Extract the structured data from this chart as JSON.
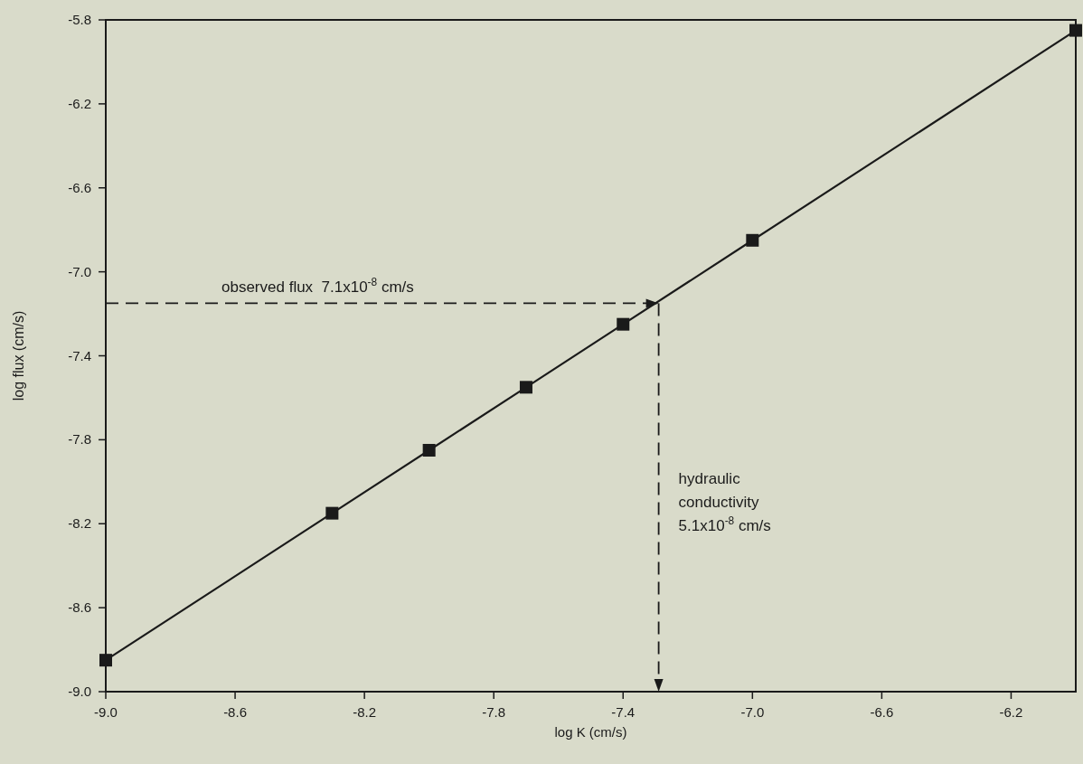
{
  "chart_data": {
    "type": "line",
    "xlabel": "log K (cm/s)",
    "ylabel": "log flux (cm/s)",
    "x": [
      -9.0,
      -8.3,
      -8.0,
      -7.7,
      -7.4,
      -7.0,
      -6.0
    ],
    "series": [
      {
        "color": "#1a1a1a",
        "values": [
          -8.85,
          -8.15,
          -7.85,
          -7.55,
          -7.25,
          -6.85,
          -5.85
        ]
      }
    ],
    "marker": "square",
    "line_style": "solid",
    "grid": false,
    "xlim": [
      -9.0,
      -6.0
    ],
    "ylim": [
      -9.0,
      -5.8
    ],
    "xticks": [
      {
        "value": -9,
        "label": "-9.0"
      },
      -8.6,
      -8.2,
      -7.8,
      -7.4,
      {
        "value": -7,
        "label": "-7.0"
      },
      -6.6,
      -6.2
    ],
    "yticks": [
      {
        "value": -9,
        "label": "-9.0"
      },
      -8.6,
      -8.2,
      -7.8,
      -7.4,
      {
        "value": -7,
        "label": "-7.0"
      },
      -6.6,
      -6.2,
      -5.8
    ],
    "ref_lines": [
      {
        "axis": "y",
        "value": -7.15,
        "label": "observed flux  7.1x10$^{-8}$ cm/s",
        "color": "#1a1a1a",
        "line_style": "dashed"
      },
      {
        "axis": "x",
        "value": -7.29,
        "label": "hydraulic\nconductivity\n5.1x10$^{-8}$ cm/s",
        "color": "#1a1a1a",
        "line_style": "dashed"
      }
    ]
  }
}
